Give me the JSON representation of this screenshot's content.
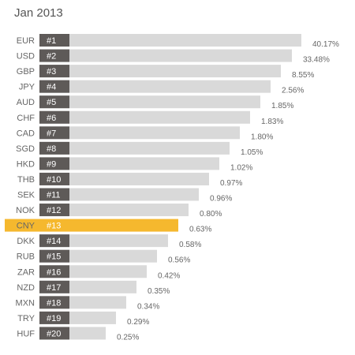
{
  "chart_data": {
    "type": "bar",
    "orientation": "horizontal",
    "title": "Jan 2013",
    "categories": [
      "EUR",
      "USD",
      "GBP",
      "JPY",
      "AUD",
      "CHF",
      "CAD",
      "SGD",
      "HKD",
      "THB",
      "SEK",
      "NOK",
      "CNY",
      "DKK",
      "RUB",
      "ZAR",
      "NZD",
      "MXN",
      "TRY",
      "HUF"
    ],
    "ranks": [
      "#1",
      "#2",
      "#3",
      "#4",
      "#5",
      "#6",
      "#7",
      "#8",
      "#9",
      "#10",
      "#11",
      "#12",
      "#13",
      "#14",
      "#15",
      "#16",
      "#17",
      "#18",
      "#19",
      "#20"
    ],
    "value_labels": [
      "40.17%",
      "33.48%",
      "8.55%",
      "2.56%",
      "1.85%",
      "1.83%",
      "1.80%",
      "1.05%",
      "1.02%",
      "0.97%",
      "0.96%",
      "0.80%",
      "0.63%",
      "0.58%",
      "0.56%",
      "0.42%",
      "0.35%",
      "0.34%",
      "0.29%",
      "0.25%"
    ],
    "highlight": "CNY",
    "colors": {
      "bar": "#d9d9d9",
      "rank_box": "#5e5a58",
      "highlight": "#f5b82e"
    }
  }
}
